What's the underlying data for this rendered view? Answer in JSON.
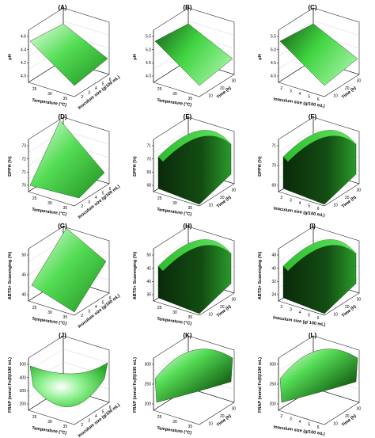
{
  "figure": {
    "panels": [
      {
        "id": "A",
        "label": "(A)",
        "zlabel": "pH",
        "xlabel": "Temperature (°C)",
        "ylabel": "Inoculum size (g/100 mL)",
        "zticks": [
          "4.0",
          "4.2",
          "4.4",
          "4.6"
        ],
        "xticks": [
          "25",
          "30",
          "35"
        ],
        "yticks": [
          "2",
          "3",
          "4",
          "5",
          "6"
        ],
        "surface": "plane_down",
        "shade": "light"
      },
      {
        "id": "B",
        "label": "(B)",
        "zlabel": "pH",
        "xlabel": "Temperature (°C)",
        "ylabel": "Time (h)",
        "zticks": [
          "4.0",
          "4.5",
          "5.0",
          "5.5"
        ],
        "xticks": [
          "25",
          "30",
          "35"
        ],
        "yticks": [
          "10",
          "20",
          "30"
        ],
        "surface": "plane_down",
        "shade": "mid"
      },
      {
        "id": "C",
        "label": "(C)",
        "zlabel": "pH",
        "xlabel": "Inoculum size (g/100 mL)",
        "ylabel": "Time (h)",
        "zticks": [
          "4.0",
          "4.5",
          "5.0",
          "5.5"
        ],
        "xticks": [
          "2",
          "3",
          "4",
          "5",
          "6"
        ],
        "yticks": [
          "10",
          "20",
          "30"
        ],
        "surface": "plane_down",
        "shade": "mid"
      },
      {
        "id": "D",
        "label": "(D)",
        "zlabel": "DPPH (%)",
        "xlabel": "Temperature (°C)",
        "ylabel": "Inoculum size (g/100 mL)",
        "zticks": [
          "70",
          "71",
          "72",
          "73"
        ],
        "xticks": [
          "25",
          "30",
          "35"
        ],
        "yticks": [
          "2",
          "3",
          "4",
          "5",
          "6"
        ],
        "surface": "wedge",
        "shade": "light"
      },
      {
        "id": "E",
        "label": "(E)",
        "zlabel": "DPPH (%)",
        "xlabel": "Temperature (°C)",
        "ylabel": "Time (h)",
        "zticks": [
          "68",
          "69",
          "70",
          "71"
        ],
        "xticks": [
          "25",
          "30",
          "35"
        ],
        "yticks": [
          "10",
          "20",
          "30"
        ],
        "surface": "ridge",
        "shade": "dark"
      },
      {
        "id": "F",
        "label": "(F)",
        "zlabel": "DPPH (%)",
        "xlabel": "Inoculum size (g/100 mL)",
        "ylabel": "Time (h)",
        "zticks": [
          "69",
          "70",
          "71"
        ],
        "xticks": [
          "2",
          "3",
          "4",
          "5",
          "6"
        ],
        "yticks": [
          "10",
          "20",
          "30"
        ],
        "surface": "ridge",
        "shade": "dark"
      },
      {
        "id": "G",
        "label": "(G)",
        "zlabel": "ABTS+ Scavenging (%)",
        "xlabel": "Temperature (°C)",
        "ylabel": "Inoculum size (g/100 mL)",
        "zticks": [
          "40",
          "45",
          "50"
        ],
        "xticks": [
          "25",
          "30",
          "35"
        ],
        "yticks": [
          "2",
          "3",
          "4",
          "5",
          "6"
        ],
        "surface": "tilted",
        "shade": "light"
      },
      {
        "id": "H",
        "label": "(H)",
        "zlabel": "ABTS+ Scavenging (%)",
        "xlabel": "Temperature (°C)",
        "ylabel": "Time (h)",
        "zticks": [
          "35",
          "40",
          "45",
          "50"
        ],
        "xticks": [
          "25",
          "30",
          "35"
        ],
        "yticks": [
          "10",
          "20",
          "30"
        ],
        "surface": "ridge",
        "shade": "dark"
      },
      {
        "id": "I",
        "label": "(I)",
        "zlabel": "ABTS+ Scavenging (%)",
        "xlabel": "Inoculum size (g/ 100 mL)",
        "ylabel": "Time (h)",
        "zticks": [
          "24",
          "32",
          "40",
          "48"
        ],
        "xticks": [
          "2",
          "3",
          "4",
          "5",
          "6"
        ],
        "yticks": [
          "10",
          "20",
          "30"
        ],
        "surface": "ridge",
        "shade": "dark"
      },
      {
        "id": "J",
        "label": "(J)",
        "zlabel": "FRAP (mmol Fe(II)/100 mL)",
        "xlabel": "Temperature (°C)",
        "ylabel": "Inoculum size (g/100 mL)",
        "zticks": [
          "200",
          "300",
          "400",
          "500"
        ],
        "xticks": [
          "25",
          "30",
          "35"
        ],
        "yticks": [
          "2",
          "3",
          "4",
          "5",
          "6"
        ],
        "surface": "bowl",
        "shade": "light"
      },
      {
        "id": "K",
        "label": "(K)",
        "zlabel": "FRAP (mmol Fe(II)/100 mL)",
        "xlabel": "Temperature (°C)",
        "ylabel": "Time (h)",
        "zticks": [
          "200",
          "250",
          "300"
        ],
        "xticks": [
          "25",
          "30",
          "35"
        ],
        "yticks": [
          "10",
          "20",
          "30"
        ],
        "surface": "saddle",
        "shade": "mid"
      },
      {
        "id": "L",
        "label": "(L)",
        "zlabel": "FRAP (mmol Fe(II)/100 mL)",
        "xlabel": "Inoculum size (g/100 mL)",
        "ylabel": "Time (h)",
        "zticks": [
          "200",
          "250",
          "300"
        ],
        "xticks": [
          "2",
          "3",
          "4",
          "5",
          "6"
        ],
        "yticks": [
          "10",
          "20",
          "30"
        ],
        "surface": "saddle",
        "shade": "mid"
      }
    ]
  },
  "chart_data": {
    "type": "surface",
    "layout": "4x3 grid of 3D response surface plots",
    "colors": {
      "light": "#7ee87e",
      "mid": "#33cc33",
      "dark": "#0d3a0d",
      "highlight": "#e8ffe8"
    }
  }
}
